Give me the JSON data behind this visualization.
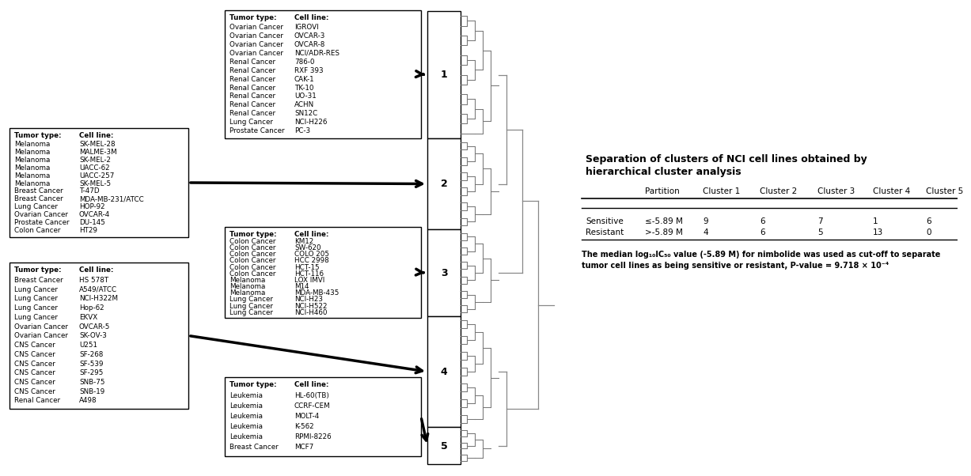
{
  "title": "Separation of clusters of NCI cell lines obtained by\nhierarchical cluster analysis",
  "table_headers": [
    "",
    "Partition",
    "Cluster 1",
    "Cluster 2",
    "Cluster 3",
    "Cluster 4",
    "Cluster 5"
  ],
  "table_rows": [
    [
      "Sensitive",
      "≤-5.89 M",
      "9",
      "6",
      "7",
      "1",
      "6"
    ],
    [
      "Resistant",
      ">-5.89 M",
      "4",
      "6",
      "5",
      "13",
      "0"
    ]
  ],
  "caption_line1": "The median log₁₀IC₅₀ value (-5.89 M) for nimbolide was used as cut-off to separate",
  "caption_line2": "tumor cell lines as being sensitive or resistant, P-value = 9.718 × 10⁻⁴",
  "cluster1_lines": [
    [
      "Ovarian Cancer",
      "IGROVI"
    ],
    [
      "Ovarian Cancer",
      "OVCAR-3"
    ],
    [
      "Ovarian Cancer",
      "OVCAR-8"
    ],
    [
      "Ovarian Cancer",
      "NCI/ADR-RES"
    ],
    [
      "Renal Cancer",
      "786-0"
    ],
    [
      "Renal Cancer",
      "RXF 393"
    ],
    [
      "Renal Cancer",
      "CAK-1"
    ],
    [
      "Renal Cancer",
      "TK-10"
    ],
    [
      "Renal Cancer",
      "UO-31"
    ],
    [
      "Renal Cancer",
      "ACHN"
    ],
    [
      "Renal Cancer",
      "SN12C"
    ],
    [
      "Lung Cancer",
      "NCI-H226"
    ],
    [
      "Prostate Cancer",
      "PC-3"
    ]
  ],
  "cluster2_lines": [
    [
      "Melanoma",
      "SK-MEL-28"
    ],
    [
      "Melanoma",
      "MALME-3M"
    ],
    [
      "Melanoma",
      "SK-MEL-2"
    ],
    [
      "Melanoma",
      "UACC-62"
    ],
    [
      "Melanoma",
      "UACC-257"
    ],
    [
      "Melanoma",
      "SK-MEL-5"
    ],
    [
      "Breast Cancer",
      "T-47D"
    ],
    [
      "Breast Cancer",
      "MDA-MB-231/ATCC"
    ],
    [
      "Lung Cancer",
      "HOP-92"
    ],
    [
      "Ovarian Cancer",
      "OVCAR-4"
    ],
    [
      "Prostate Cancer",
      "DU-145"
    ],
    [
      "Colon Cancer",
      "HT29"
    ]
  ],
  "cluster3_lines": [
    [
      "Colon Cancer",
      "KM12"
    ],
    [
      "Colon Cancer",
      "SW-620"
    ],
    [
      "Colon Cancer",
      "COLO 205"
    ],
    [
      "Colon Cancer",
      "HCC 2998"
    ],
    [
      "Colon Cancer",
      "HCT-15"
    ],
    [
      "Colon Cancer",
      "HCT-116"
    ],
    [
      "Melanoma",
      "LOX IMVI"
    ],
    [
      "Melanoma",
      "M14"
    ],
    [
      "Melanoma",
      "MDA-MB-435"
    ],
    [
      "Lung Cancer",
      "NCI-H23"
    ],
    [
      "Lung Cancer",
      "NCI-H522"
    ],
    [
      "Lung Cancer",
      "NCI-H460"
    ]
  ],
  "cluster4_lines": [
    [
      "Breast Cancer",
      "HS 578T"
    ],
    [
      "Lung Cancer",
      "A549/ATCC"
    ],
    [
      "Lung Cancer",
      "NCI-H322M"
    ],
    [
      "Lung Cancer",
      "Hop-62"
    ],
    [
      "Lung Cancer",
      "EKVX"
    ],
    [
      "Ovarian Cancer",
      "OVCAR-5"
    ],
    [
      "Ovarian Cancer",
      "SK-OV-3"
    ],
    [
      "CNS Cancer",
      "U251"
    ],
    [
      "CNS Cancer",
      "SF-268"
    ],
    [
      "CNS Cancer",
      "SF-539"
    ],
    [
      "CNS Cancer",
      "SF-295"
    ],
    [
      "CNS Cancer",
      "SNB-75"
    ],
    [
      "CNS Cancer",
      "SNB-19"
    ],
    [
      "Renal Cancer",
      "A498"
    ]
  ],
  "cluster5_lines": [
    [
      "Leukemia",
      "HL-60(TB)"
    ],
    [
      "Leukemia",
      "CCRF-CEM"
    ],
    [
      "Leukemia",
      "MOLT-4"
    ],
    [
      "Leukemia",
      "K-562"
    ],
    [
      "Leukemia",
      "RPMI-8226"
    ],
    [
      "Breast Cancer",
      "MCF7"
    ]
  ]
}
